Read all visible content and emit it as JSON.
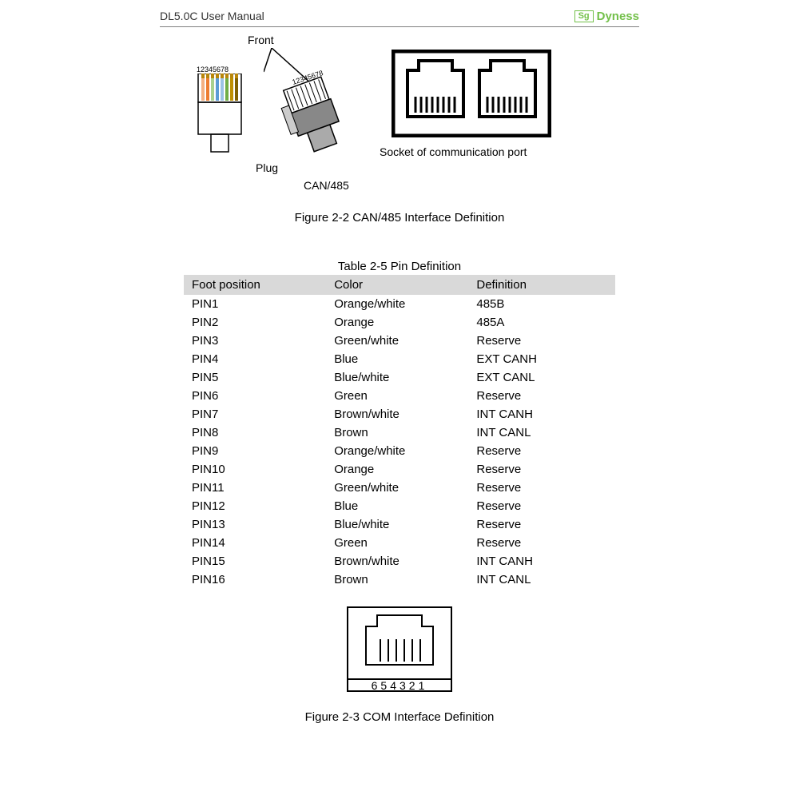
{
  "header": {
    "title": "DL5.0C User Manual",
    "brand_icon": "Sg",
    "brand": "Dyness",
    "brand_color": "#73c04a"
  },
  "fig22": {
    "labels": {
      "front": "Front",
      "plug": "Plug",
      "can485": "CAN/485",
      "socket": "Socket of communication port",
      "pins_left": "12345678",
      "pins_right": "12345678"
    },
    "caption": "Figure 2-2 CAN/485 Interface Definition"
  },
  "table25": {
    "caption": "Table 2-5 Pin Definition",
    "columns": [
      "Foot position",
      "Color",
      "Definition"
    ],
    "header_bg": "#d9d9d9",
    "rows": [
      [
        "PIN1",
        "Orange/white",
        "485B"
      ],
      [
        "PIN2",
        "Orange",
        "485A"
      ],
      [
        "PIN3",
        "Green/white",
        "Reserve"
      ],
      [
        "PIN4",
        "Blue",
        "EXT CANH"
      ],
      [
        "PIN5",
        "Blue/white",
        "EXT CANL"
      ],
      [
        "PIN6",
        "Green",
        "Reserve"
      ],
      [
        "PIN7",
        "Brown/white",
        "INT CANH"
      ],
      [
        "PIN8",
        "Brown",
        "INT CANL"
      ],
      [
        "PIN9",
        "Orange/white",
        "Reserve"
      ],
      [
        "PIN10",
        "Orange",
        "Reserve"
      ],
      [
        "PIN11",
        "Green/white",
        "Reserve"
      ],
      [
        "PIN12",
        "Blue",
        "Reserve"
      ],
      [
        "PIN13",
        "Blue/white",
        "Reserve"
      ],
      [
        "PIN14",
        "Green",
        "Reserve"
      ],
      [
        "PIN15",
        "Brown/white",
        "INT CANH"
      ],
      [
        "PIN16",
        "Brown",
        "INT CANL"
      ]
    ]
  },
  "fig23": {
    "pins": "654321",
    "caption": "Figure 2-3 COM Interface Definition"
  }
}
